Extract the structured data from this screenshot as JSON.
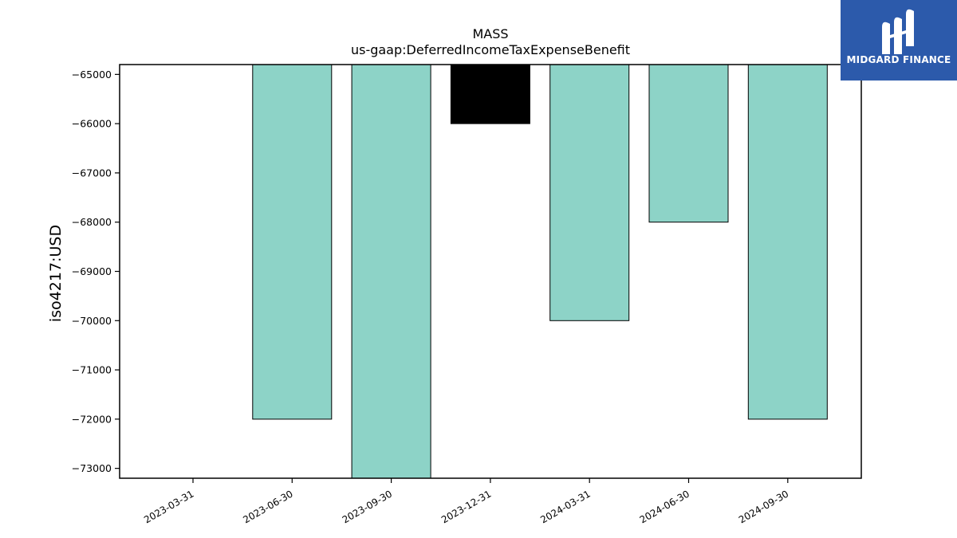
{
  "brand": {
    "name": "MIDGARD FINANCE",
    "bg_color": "#2c5aab"
  },
  "chart_data": {
    "type": "bar",
    "title": "MASS",
    "subtitle": "us-gaap:DeferredIncomeTaxExpenseBenefit",
    "xlabel": "",
    "ylabel": "iso4217:USD",
    "categories": [
      "2023-03-31",
      "2023-06-30",
      "2023-09-30",
      "2023-12-31",
      "2024-03-31",
      "2024-06-30",
      "2024-09-30"
    ],
    "values": [
      null,
      -72000,
      -73200,
      -66000,
      -70000,
      -68000,
      -72000
    ],
    "bar_colors": [
      "#8dd3c7",
      "#8dd3c7",
      "#8dd3c7",
      "#000000",
      "#8dd3c7",
      "#8dd3c7",
      "#8dd3c7"
    ],
    "ylim": [
      -73200,
      -64800
    ],
    "yticks": [
      -65000,
      -66000,
      -67000,
      -68000,
      -69000,
      -70000,
      -71000,
      -72000,
      -73000
    ],
    "ytick_labels": [
      "−65000",
      "−66000",
      "−67000",
      "−68000",
      "−69000",
      "−70000",
      "−71000",
      "−72000",
      "−73000"
    ],
    "grid": false,
    "legend": "none"
  }
}
